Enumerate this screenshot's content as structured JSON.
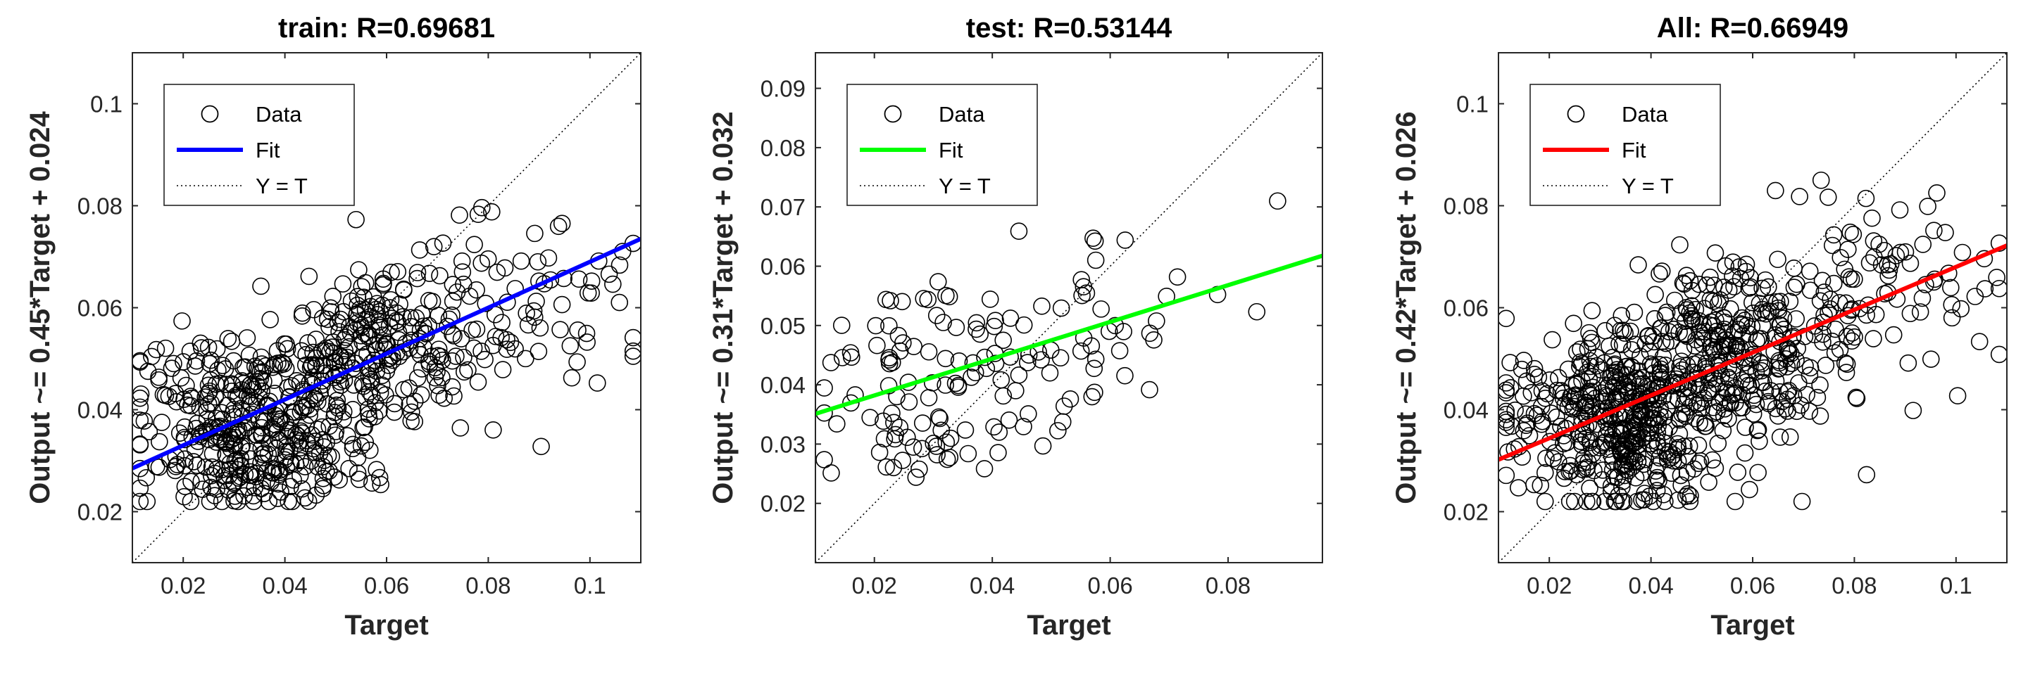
{
  "chart_data": [
    {
      "type": "scatter",
      "title": "train: R=0.69681",
      "xlabel": "Target",
      "ylabel": "Output ~= 0.45*Target + 0.024",
      "xlim": [
        0.01,
        0.11
      ],
      "ylim": [
        0.01,
        0.11
      ],
      "xticks": [
        0.02,
        0.04,
        0.06,
        0.08,
        0.1
      ],
      "xtick_labels": [
        "0.02",
        "0.04",
        "0.06",
        "0.08",
        "0.1"
      ],
      "yticks": [
        0.02,
        0.04,
        0.06,
        0.08,
        0.1
      ],
      "ytick_labels": [
        "0.02",
        "0.04",
        "0.06",
        "0.08",
        "0.1"
      ],
      "fit": {
        "slope": 0.45,
        "intercept": 0.024,
        "color": "#0000ff"
      },
      "identity_line": true,
      "legend": {
        "position": "top-left",
        "entries": [
          "Data",
          "Fit",
          "Y = T"
        ]
      },
      "marker": "open-circle",
      "n_points": 700,
      "seed": 11,
      "clusters": [
        {
          "weight": 0.55,
          "mx": 0.034,
          "sx": 0.011,
          "my": 0.037,
          "sy": 0.009
        },
        {
          "weight": 0.33,
          "mx": 0.058,
          "sx": 0.01,
          "my": 0.052,
          "sy": 0.008
        },
        {
          "weight": 0.12,
          "mx": 0.085,
          "sx": 0.013,
          "my": 0.064,
          "sy": 0.009
        }
      ]
    },
    {
      "type": "scatter",
      "title": "test: R=0.53144",
      "xlabel": "Target",
      "ylabel": "Output ~= 0.31*Target + 0.032",
      "xlim": [
        0.01,
        0.096
      ],
      "ylim": [
        0.01,
        0.096
      ],
      "xticks": [
        0.02,
        0.04,
        0.06,
        0.08
      ],
      "xtick_labels": [
        "0.02",
        "0.04",
        "0.06",
        "0.08"
      ],
      "yticks": [
        0.02,
        0.03,
        0.04,
        0.05,
        0.06,
        0.07,
        0.08,
        0.09
      ],
      "ytick_labels": [
        "0.02",
        "0.03",
        "0.04",
        "0.05",
        "0.06",
        "0.07",
        "0.08",
        "0.09"
      ],
      "fit": {
        "slope": 0.31,
        "intercept": 0.032,
        "color": "#00ff00"
      },
      "identity_line": true,
      "legend": {
        "position": "top-left",
        "entries": [
          "Data",
          "Fit",
          "Y = T"
        ]
      },
      "marker": "open-circle",
      "n_points": 150,
      "seed": 29,
      "clusters": [
        {
          "weight": 0.62,
          "mx": 0.031,
          "sx": 0.01,
          "my": 0.041,
          "sy": 0.008
        },
        {
          "weight": 0.3,
          "mx": 0.052,
          "sx": 0.008,
          "my": 0.049,
          "sy": 0.008
        },
        {
          "weight": 0.08,
          "mx": 0.077,
          "sx": 0.008,
          "my": 0.058,
          "sy": 0.006
        }
      ]
    },
    {
      "type": "scatter",
      "title": "All: R=0.66949",
      "xlabel": "Target",
      "ylabel": "Output ~= 0.42*Target + 0.026",
      "xlim": [
        0.01,
        0.11
      ],
      "ylim": [
        0.01,
        0.11
      ],
      "xticks": [
        0.02,
        0.04,
        0.06,
        0.08,
        0.1
      ],
      "xtick_labels": [
        "0.02",
        "0.04",
        "0.06",
        "0.08",
        "0.1"
      ],
      "yticks": [
        0.02,
        0.04,
        0.06,
        0.08,
        0.1
      ],
      "ytick_labels": [
        "0.02",
        "0.04",
        "0.06",
        "0.08",
        "0.1"
      ],
      "fit": {
        "slope": 0.42,
        "intercept": 0.026,
        "color": "#ff0000"
      },
      "identity_line": true,
      "legend": {
        "position": "top-left",
        "entries": [
          "Data",
          "Fit",
          "Y = T"
        ]
      },
      "marker": "open-circle",
      "n_points": 850,
      "seed": 53,
      "clusters": [
        {
          "weight": 0.56,
          "mx": 0.034,
          "sx": 0.011,
          "my": 0.038,
          "sy": 0.009
        },
        {
          "weight": 0.32,
          "mx": 0.058,
          "sx": 0.01,
          "my": 0.052,
          "sy": 0.008
        },
        {
          "weight": 0.12,
          "mx": 0.085,
          "sx": 0.013,
          "my": 0.064,
          "sy": 0.009
        }
      ]
    }
  ]
}
